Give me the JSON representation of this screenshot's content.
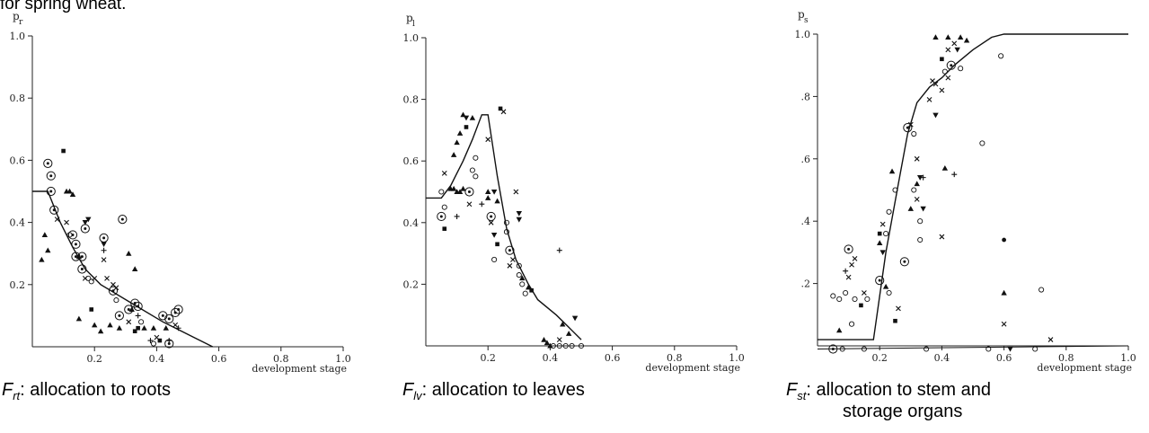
{
  "header_fragment": "for spring wheat.",
  "chart_data": [
    {
      "type": "scatter",
      "ylabel": "p",
      "ylabel_sub": "r",
      "xlabel": "development stage",
      "xlim": [
        0,
        1.0
      ],
      "ylim": [
        0,
        1.0
      ],
      "xticks": [
        "0.2",
        "0.4",
        "0.6",
        "0.8",
        "1.0"
      ],
      "yticks": [
        "0.2",
        "0.4",
        "0.6",
        "0.8",
        "1.0"
      ],
      "caption_symbol": "F",
      "caption_sub": "rt",
      "caption_text": ": allocation to roots",
      "curve": [
        [
          0,
          0.5
        ],
        [
          0.05,
          0.5
        ],
        [
          0.09,
          0.4
        ],
        [
          0.13,
          0.32
        ],
        [
          0.17,
          0.25
        ],
        [
          0.22,
          0.2
        ],
        [
          0.32,
          0.14
        ],
        [
          0.42,
          0.08
        ],
        [
          0.52,
          0.03
        ],
        [
          0.58,
          0.0
        ]
      ],
      "points": [
        [
          0.05,
          0.59,
          "co"
        ],
        [
          0.06,
          0.55,
          "co"
        ],
        [
          0.06,
          0.5,
          "co"
        ],
        [
          0.07,
          0.44,
          "co"
        ],
        [
          0.13,
          0.36,
          "co"
        ],
        [
          0.14,
          0.33,
          "co"
        ],
        [
          0.16,
          0.29,
          "co"
        ],
        [
          0.14,
          0.29,
          "co"
        ],
        [
          0.16,
          0.25,
          "co"
        ],
        [
          0.17,
          0.38,
          "co"
        ],
        [
          0.29,
          0.41,
          "co"
        ],
        [
          0.23,
          0.35,
          "co"
        ],
        [
          0.26,
          0.18,
          "co"
        ],
        [
          0.28,
          0.1,
          "co"
        ],
        [
          0.31,
          0.12,
          "co"
        ],
        [
          0.33,
          0.14,
          "co"
        ],
        [
          0.34,
          0.13,
          "co"
        ],
        [
          0.42,
          0.1,
          "co"
        ],
        [
          0.44,
          0.09,
          "co"
        ],
        [
          0.46,
          0.11,
          "co"
        ],
        [
          0.47,
          0.12,
          "co"
        ],
        [
          0.44,
          0.01,
          "co"
        ],
        [
          0.1,
          0.63,
          "sq"
        ],
        [
          0.11,
          0.5,
          "tri"
        ],
        [
          0.12,
          0.5,
          "tri"
        ],
        [
          0.13,
          0.49,
          "tri"
        ],
        [
          0.03,
          0.28,
          "tri"
        ],
        [
          0.05,
          0.31,
          "tri"
        ],
        [
          0.04,
          0.36,
          "tri"
        ],
        [
          0.08,
          0.41,
          "x"
        ],
        [
          0.11,
          0.4,
          "x"
        ],
        [
          0.12,
          0.36,
          "o"
        ],
        [
          0.15,
          0.29,
          "tri"
        ],
        [
          0.17,
          0.4,
          "inv"
        ],
        [
          0.18,
          0.41,
          "inv"
        ],
        [
          0.23,
          0.33,
          "inv"
        ],
        [
          0.23,
          0.31,
          "plus"
        ],
        [
          0.23,
          0.28,
          "x"
        ],
        [
          0.2,
          0.22,
          "x"
        ],
        [
          0.19,
          0.21,
          "o"
        ],
        [
          0.18,
          0.22,
          "o"
        ],
        [
          0.17,
          0.22,
          "x"
        ],
        [
          0.19,
          0.12,
          "sq"
        ],
        [
          0.15,
          0.09,
          "tri"
        ],
        [
          0.2,
          0.07,
          "tri"
        ],
        [
          0.22,
          0.05,
          "tri"
        ],
        [
          0.24,
          0.22,
          "x"
        ],
        [
          0.26,
          0.2,
          "x"
        ],
        [
          0.27,
          0.19,
          "x"
        ],
        [
          0.27,
          0.15,
          "o"
        ],
        [
          0.31,
          0.3,
          "tri"
        ],
        [
          0.33,
          0.25,
          "tri"
        ],
        [
          0.32,
          0.12,
          "tri"
        ],
        [
          0.34,
          0.1,
          "plus"
        ],
        [
          0.35,
          0.08,
          "o"
        ],
        [
          0.28,
          0.06,
          "tri"
        ],
        [
          0.31,
          0.08,
          "x"
        ],
        [
          0.36,
          0.06,
          "tri"
        ],
        [
          0.4,
          0.03,
          "x"
        ],
        [
          0.41,
          0.02,
          "sq"
        ],
        [
          0.43,
          0.06,
          "tri"
        ],
        [
          0.46,
          0.07,
          "x"
        ],
        [
          0.47,
          0.06,
          "plus"
        ],
        [
          0.44,
          0.02,
          "plus"
        ],
        [
          0.34,
          0.06,
          "sq"
        ],
        [
          0.33,
          0.05,
          "sq"
        ],
        [
          0.39,
          0.06,
          "tri"
        ],
        [
          0.25,
          0.07,
          "tri"
        ],
        [
          0.38,
          0.02,
          "plus"
        ],
        [
          0.39,
          0.01,
          "o"
        ]
      ]
    },
    {
      "type": "scatter",
      "ylabel": "p",
      "ylabel_sub": "l",
      "xlabel": "development stage",
      "xlim": [
        0,
        1.0
      ],
      "ylim": [
        0,
        1.0
      ],
      "xticks": [
        "0.2",
        "0.4",
        "0.6",
        "0.8",
        "1.0"
      ],
      "yticks": [
        "0.2",
        "0.4",
        "0.6",
        "0.8",
        "1.0"
      ],
      "caption_symbol": "F",
      "caption_sub": "lv",
      "caption_text": ": allocation to leaves",
      "curve": [
        [
          0,
          0.48
        ],
        [
          0.05,
          0.48
        ],
        [
          0.08,
          0.52
        ],
        [
          0.12,
          0.6
        ],
        [
          0.15,
          0.67
        ],
        [
          0.18,
          0.75
        ],
        [
          0.2,
          0.75
        ],
        [
          0.23,
          0.55
        ],
        [
          0.26,
          0.38
        ],
        [
          0.29,
          0.28
        ],
        [
          0.33,
          0.2
        ],
        [
          0.36,
          0.15
        ],
        [
          0.42,
          0.1
        ],
        [
          0.46,
          0.06
        ],
        [
          0.5,
          0.02
        ]
      ],
      "points": [
        [
          0.05,
          0.42,
          "co"
        ],
        [
          0.14,
          0.5,
          "co"
        ],
        [
          0.21,
          0.42,
          "co"
        ],
        [
          0.27,
          0.31,
          "co"
        ],
        [
          0.12,
          0.75,
          "tri"
        ],
        [
          0.13,
          0.74,
          "inv"
        ],
        [
          0.15,
          0.74,
          "tri"
        ],
        [
          0.13,
          0.71,
          "sq"
        ],
        [
          0.11,
          0.69,
          "tri"
        ],
        [
          0.1,
          0.66,
          "tri"
        ],
        [
          0.09,
          0.62,
          "tri"
        ],
        [
          0.16,
          0.61,
          "o"
        ],
        [
          0.15,
          0.57,
          "o"
        ],
        [
          0.16,
          0.55,
          "o"
        ],
        [
          0.24,
          0.77,
          "sq"
        ],
        [
          0.25,
          0.76,
          "x"
        ],
        [
          0.2,
          0.67,
          "x"
        ],
        [
          0.06,
          0.56,
          "x"
        ],
        [
          0.05,
          0.5,
          "o"
        ],
        [
          0.06,
          0.45,
          "o"
        ],
        [
          0.06,
          0.38,
          "sq"
        ],
        [
          0.08,
          0.51,
          "tri"
        ],
        [
          0.09,
          0.51,
          "tri"
        ],
        [
          0.1,
          0.5,
          "tri"
        ],
        [
          0.11,
          0.5,
          "tri"
        ],
        [
          0.12,
          0.51,
          "tri"
        ],
        [
          0.1,
          0.42,
          "plus"
        ],
        [
          0.14,
          0.46,
          "x"
        ],
        [
          0.18,
          0.46,
          "plus"
        ],
        [
          0.2,
          0.5,
          "tri"
        ],
        [
          0.2,
          0.48,
          "tri"
        ],
        [
          0.22,
          0.5,
          "inv"
        ],
        [
          0.23,
          0.47,
          "tri"
        ],
        [
          0.21,
          0.4,
          "x"
        ],
        [
          0.22,
          0.36,
          "inv"
        ],
        [
          0.29,
          0.5,
          "x"
        ],
        [
          0.3,
          0.43,
          "inv"
        ],
        [
          0.3,
          0.41,
          "inv"
        ],
        [
          0.22,
          0.28,
          "o"
        ],
        [
          0.23,
          0.33,
          "sq"
        ],
        [
          0.26,
          0.4,
          "o"
        ],
        [
          0.26,
          0.37,
          "o"
        ],
        [
          0.27,
          0.26,
          "x"
        ],
        [
          0.28,
          0.28,
          "x"
        ],
        [
          0.3,
          0.26,
          "o"
        ],
        [
          0.3,
          0.23,
          "o"
        ],
        [
          0.31,
          0.2,
          "o"
        ],
        [
          0.32,
          0.17,
          "o"
        ],
        [
          0.33,
          0.19,
          "tri"
        ],
        [
          0.34,
          0.18,
          "sq"
        ],
        [
          0.31,
          0.22,
          "tri"
        ],
        [
          0.43,
          0.31,
          "plus"
        ],
        [
          0.44,
          0.07,
          "tri"
        ],
        [
          0.46,
          0.04,
          "tri"
        ],
        [
          0.48,
          0.09,
          "inv"
        ],
        [
          0.38,
          0.02,
          "tri"
        ],
        [
          0.39,
          0.01,
          "tri"
        ],
        [
          0.4,
          0.0,
          "tri"
        ],
        [
          0.41,
          0.0,
          "o"
        ],
        [
          0.43,
          0.0,
          "o"
        ],
        [
          0.45,
          0.0,
          "o"
        ],
        [
          0.47,
          0.0,
          "o"
        ],
        [
          0.5,
          0.0,
          "o"
        ],
        [
          0.43,
          0.02,
          "x"
        ]
      ]
    },
    {
      "type": "scatter",
      "ylabel": "p",
      "ylabel_sub": "s",
      "xlabel": "development stage",
      "xlim": [
        0,
        1.0
      ],
      "ylim": [
        0,
        1.0
      ],
      "xticks": [
        "0.2",
        "0.4",
        "0.6",
        "0.8",
        "1.0"
      ],
      "yticks": [
        ".2",
        ".4",
        ".6",
        ".8",
        "1.0"
      ],
      "caption_symbol": "F",
      "caption_sub": "st",
      "caption_text": ": allocation to stem and",
      "caption_line2": "storage organs",
      "curve": [
        [
          0,
          0.02
        ],
        [
          0.18,
          0.02
        ],
        [
          0.22,
          0.3
        ],
        [
          0.26,
          0.52
        ],
        [
          0.29,
          0.68
        ],
        [
          0.32,
          0.78
        ],
        [
          0.36,
          0.83
        ],
        [
          0.4,
          0.86
        ],
        [
          0.44,
          0.9
        ],
        [
          0.5,
          0.95
        ],
        [
          0.56,
          0.99
        ],
        [
          0.6,
          1.0
        ],
        [
          1.0,
          1.0
        ]
      ],
      "flat_line": [
        [
          0,
          -0.01
        ],
        [
          1.0,
          0.0
        ]
      ],
      "points": [
        [
          0.1,
          0.31,
          "co"
        ],
        [
          0.2,
          0.21,
          "co"
        ],
        [
          0.28,
          0.27,
          "co"
        ],
        [
          0.29,
          0.7,
          "co"
        ],
        [
          0.43,
          0.9,
          "co"
        ],
        [
          0.05,
          -0.01,
          "co"
        ],
        [
          0.12,
          0.28,
          "x"
        ],
        [
          0.09,
          0.24,
          "plus"
        ],
        [
          0.11,
          0.26,
          "x"
        ],
        [
          0.1,
          0.22,
          "x"
        ],
        [
          0.07,
          0.15,
          "o"
        ],
        [
          0.09,
          0.17,
          "o"
        ],
        [
          0.12,
          0.15,
          "o"
        ],
        [
          0.14,
          0.13,
          "sq"
        ],
        [
          0.15,
          0.17,
          "x"
        ],
        [
          0.16,
          0.15,
          "o"
        ],
        [
          0.11,
          0.07,
          "o"
        ],
        [
          0.07,
          0.05,
          "tri"
        ],
        [
          0.05,
          0.16,
          "o"
        ],
        [
          0.2,
          0.36,
          "sq"
        ],
        [
          0.2,
          0.33,
          "tri"
        ],
        [
          0.21,
          0.39,
          "x"
        ],
        [
          0.21,
          0.3,
          "inv"
        ],
        [
          0.22,
          0.36,
          "o"
        ],
        [
          0.23,
          0.43,
          "o"
        ],
        [
          0.25,
          0.5,
          "o"
        ],
        [
          0.24,
          0.56,
          "tri"
        ],
        [
          0.23,
          0.17,
          "o"
        ],
        [
          0.26,
          0.12,
          "x"
        ],
        [
          0.25,
          0.08,
          "sq"
        ],
        [
          0.22,
          0.19,
          "tri"
        ],
        [
          0.3,
          0.71,
          "x"
        ],
        [
          0.31,
          0.68,
          "o"
        ],
        [
          0.32,
          0.6,
          "x"
        ],
        [
          0.31,
          0.5,
          "o"
        ],
        [
          0.32,
          0.47,
          "x"
        ],
        [
          0.33,
          0.4,
          "o"
        ],
        [
          0.3,
          0.44,
          "tri"
        ],
        [
          0.32,
          0.52,
          "tri"
        ],
        [
          0.33,
          0.54,
          "inv"
        ],
        [
          0.34,
          0.54,
          "plus"
        ],
        [
          0.34,
          0.44,
          "inv"
        ],
        [
          0.33,
          0.34,
          "o"
        ],
        [
          0.36,
          0.79,
          "x"
        ],
        [
          0.37,
          0.85,
          "x"
        ],
        [
          0.38,
          0.84,
          "x"
        ],
        [
          0.38,
          0.74,
          "inv"
        ],
        [
          0.4,
          0.82,
          "x"
        ],
        [
          0.4,
          0.92,
          "sq"
        ],
        [
          0.41,
          0.88,
          "o"
        ],
        [
          0.42,
          0.86,
          "x"
        ],
        [
          0.42,
          0.95,
          "x"
        ],
        [
          0.45,
          0.95,
          "inv"
        ],
        [
          0.44,
          0.97,
          "x"
        ],
        [
          0.46,
          0.89,
          "o"
        ],
        [
          0.46,
          0.99,
          "tri"
        ],
        [
          0.48,
          0.98,
          "tri"
        ],
        [
          0.38,
          0.99,
          "tri"
        ],
        [
          0.42,
          0.99,
          "tri"
        ],
        [
          0.41,
          0.57,
          "tri"
        ],
        [
          0.44,
          0.55,
          "plus"
        ],
        [
          0.53,
          0.65,
          "o"
        ],
        [
          0.59,
          0.93,
          "o"
        ],
        [
          0.6,
          0.34,
          "dot"
        ],
        [
          0.6,
          0.17,
          "tri"
        ],
        [
          0.6,
          0.07,
          "x"
        ],
        [
          0.72,
          0.18,
          "o"
        ],
        [
          0.4,
          0.35,
          "x"
        ],
        [
          0.15,
          -0.01,
          "o"
        ],
        [
          0.35,
          -0.01,
          "o"
        ],
        [
          0.55,
          -0.01,
          "o"
        ],
        [
          0.7,
          -0.01,
          "o"
        ],
        [
          0.62,
          -0.01,
          "inv"
        ],
        [
          0.75,
          0.02,
          "x"
        ],
        [
          0.08,
          -0.01,
          "o"
        ]
      ]
    }
  ]
}
